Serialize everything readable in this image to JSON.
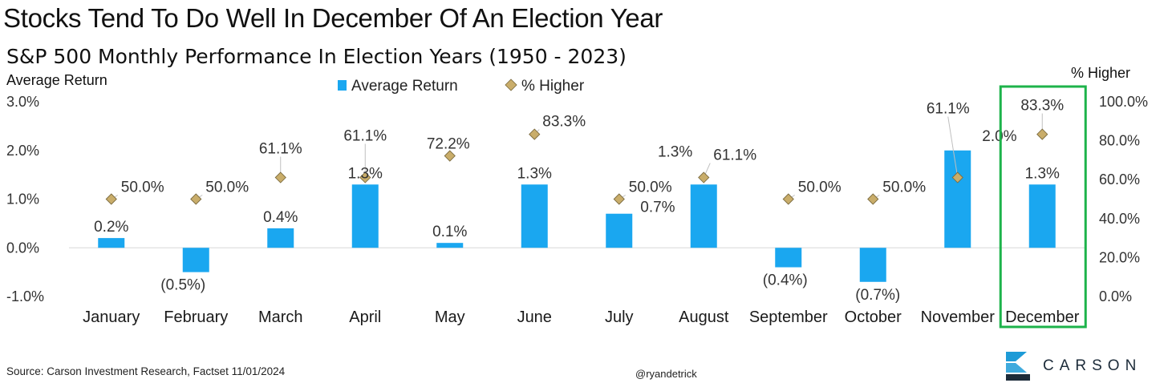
{
  "header": {
    "title": "Stocks Tend To Do Well In December Of An Election Year",
    "subtitle": "S&P 500 Monthly Performance In Election Years (1950 - 2023)"
  },
  "footer": {
    "source": "Source: Carson Investment Research, Factset 11/01/2024",
    "handle": "@ryandetrick",
    "brand": "CARSON"
  },
  "colors": {
    "bar": "#1aa7f0",
    "diamond": "#c9ad6a",
    "diamond_border": "#7a6a3e",
    "highlight_box": "#1db34a",
    "zero_line": "#d8d8d8"
  },
  "chart_data": {
    "type": "bar",
    "categories": [
      "January",
      "February",
      "March",
      "April",
      "May",
      "June",
      "July",
      "August",
      "September",
      "October",
      "November",
      "December"
    ],
    "series": [
      {
        "name": "Average Return",
        "axis": "left",
        "values": [
          0.2,
          -0.5,
          0.4,
          1.3,
          0.1,
          1.3,
          0.7,
          1.3,
          -0.4,
          -0.7,
          2.0,
          1.3
        ],
        "labels": [
          "0.2%",
          "(0.5%)",
          "0.4%",
          "1.3%",
          "0.1%",
          "1.3%",
          "0.7%",
          "1.3%",
          "(0.4%)",
          "(0.7%)",
          "2.0%",
          "1.3%"
        ],
        "mark": "bar"
      },
      {
        "name": "% Higher",
        "axis": "right",
        "values": [
          50.0,
          50.0,
          61.1,
          61.1,
          72.2,
          83.3,
          50.0,
          61.1,
          50.0,
          50.0,
          61.1,
          83.3
        ],
        "labels": [
          "50.0%",
          "50.0%",
          "61.1%",
          "61.1%",
          "72.2%",
          "83.3%",
          "50.0%",
          "61.1%",
          "50.0%",
          "50.0%",
          "61.1%",
          "83.3%"
        ],
        "mark": "diamond"
      }
    ],
    "ylabel_left": "Average Return",
    "ylabel_right": "% Higher",
    "ylim_left": [
      -1.0,
      3.0
    ],
    "ylim_right": [
      0,
      100
    ],
    "yticks_left": [
      "3.0%",
      "2.0%",
      "1.0%",
      "0.0%",
      "-1.0%"
    ],
    "yticks_right": [
      "100.0%",
      "80.0%",
      "60.0%",
      "40.0%",
      "20.0%",
      "0.0%"
    ],
    "highlight_category": "December",
    "legend_position": "top-center",
    "grid": false
  }
}
